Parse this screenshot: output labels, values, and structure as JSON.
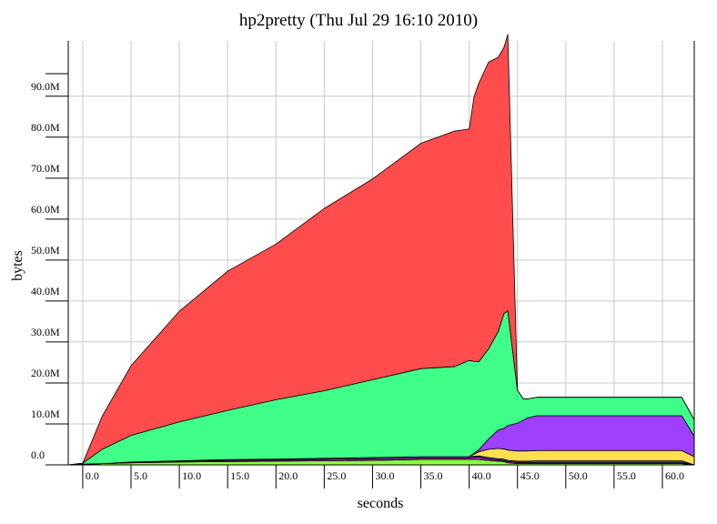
{
  "chart_data": {
    "type": "area",
    "title": "hp2pretty (Thu Jul 29 16:10 2010)",
    "xlabel": "seconds",
    "ylabel": "bytes",
    "xlim": [
      -1.5,
      63.3
    ],
    "ylim": [
      0,
      103.5
    ],
    "y_unit": "M bytes",
    "x_ticks": [
      {
        "value": 0,
        "label": "0.0"
      },
      {
        "value": 5,
        "label": "5.0"
      },
      {
        "value": 10,
        "label": "10.0"
      },
      {
        "value": 15,
        "label": "15.0"
      },
      {
        "value": 20,
        "label": "20.0"
      },
      {
        "value": 25,
        "label": "25.0"
      },
      {
        "value": 30,
        "label": "30.0"
      },
      {
        "value": 35,
        "label": "35.0"
      },
      {
        "value": 40,
        "label": "40.0"
      },
      {
        "value": 45,
        "label": "45.0"
      },
      {
        "value": 50,
        "label": "50.0"
      },
      {
        "value": 55,
        "label": "55.0"
      },
      {
        "value": 60,
        "label": "60.0"
      }
    ],
    "y_ticks": [
      {
        "value": 0,
        "label": "0.0"
      },
      {
        "value": 10,
        "label": "10.0M"
      },
      {
        "value": 20,
        "label": "20.0M"
      },
      {
        "value": 30,
        "label": "30.0M"
      },
      {
        "value": 40,
        "label": "40.0M"
      },
      {
        "value": 50,
        "label": "50.0M"
      },
      {
        "value": 60,
        "label": "60.0M"
      },
      {
        "value": 70,
        "label": "70.0M"
      },
      {
        "value": 80,
        "label": "80.0M"
      },
      {
        "value": 90,
        "label": "90.0M"
      }
    ],
    "grid": true,
    "stacked": true,
    "x": [
      -1.5,
      0.0,
      2.0,
      5.0,
      10.0,
      15.0,
      20.0,
      25.0,
      30.0,
      35.0,
      38.5,
      40.0,
      40.5,
      41.0,
      42.0,
      43.0,
      43.6,
      44.0,
      45.0,
      45.6,
      46.0,
      47.0,
      62.0,
      63.3
    ],
    "series": [
      {
        "color": "#88ff44",
        "values": [
          0,
          0.2,
          0.3,
          0.5,
          0.7,
          0.8,
          0.9,
          1.0,
          1.1,
          1.3,
          1.3,
          1.3,
          1.3,
          1.3,
          1.1,
          0.9,
          0.8,
          0.5,
          0.3,
          0.3,
          0.3,
          0.3,
          0.3,
          0
        ]
      },
      {
        "color": "#c020c0",
        "values": [
          0,
          0.0,
          0.0,
          0.1,
          0.2,
          0.3,
          0.3,
          0.4,
          0.4,
          0.4,
          0.4,
          0.4,
          0.5,
          0.6,
          0.4,
          0.3,
          0.3,
          0.3,
          0.3,
          0.3,
          0.3,
          0.3,
          0.3,
          0
        ]
      },
      {
        "color": "#6060ff",
        "values": [
          0,
          0.0,
          0.0,
          0.1,
          0.1,
          0.2,
          0.2,
          0.2,
          0.3,
          0.3,
          0.3,
          0.3,
          0.3,
          0.3,
          0.3,
          0.3,
          0.3,
          0.3,
          0.3,
          0.3,
          0.3,
          0.4,
          0.4,
          0
        ]
      },
      {
        "color": "#ffe050",
        "values": [
          0,
          0.0,
          0.0,
          0.0,
          0.0,
          0.0,
          0.0,
          0.0,
          0.0,
          0.0,
          0.0,
          0.0,
          0.5,
          1.0,
          2.0,
          2.5,
          2.5,
          2.5,
          2.5,
          2.5,
          2.5,
          2.5,
          2.5,
          2.0
        ]
      },
      {
        "color": "#a040ff",
        "values": [
          0,
          0.0,
          0.0,
          0.0,
          0.0,
          0.0,
          0.0,
          0.0,
          0.0,
          0.0,
          0.0,
          0.0,
          0.2,
          0.5,
          2.5,
          4.5,
          5.0,
          6.0,
          6.8,
          7.5,
          8.0,
          8.5,
          8.5,
          5.0
        ]
      },
      {
        "color": "#40ff88",
        "values": [
          0,
          0.2,
          3.5,
          6.5,
          9.5,
          12.0,
          14.5,
          16.5,
          19.0,
          21.5,
          22.0,
          23.5,
          22.5,
          21.5,
          22.0,
          24.0,
          28.0,
          28.0,
          8.0,
          5.2,
          4.7,
          4.5,
          4.5,
          4.0
        ]
      },
      {
        "color": "#ff4c4c",
        "values": [
          0,
          0.0,
          8.0,
          17.0,
          27.0,
          34.0,
          38.0,
          44.5,
          49.0,
          55.0,
          57.5,
          56.5,
          64.5,
          68.0,
          70.0,
          67.0,
          65.0,
          67.5,
          0.0,
          0.0,
          0.0,
          0.0,
          0.0,
          0.0
        ]
      }
    ]
  }
}
